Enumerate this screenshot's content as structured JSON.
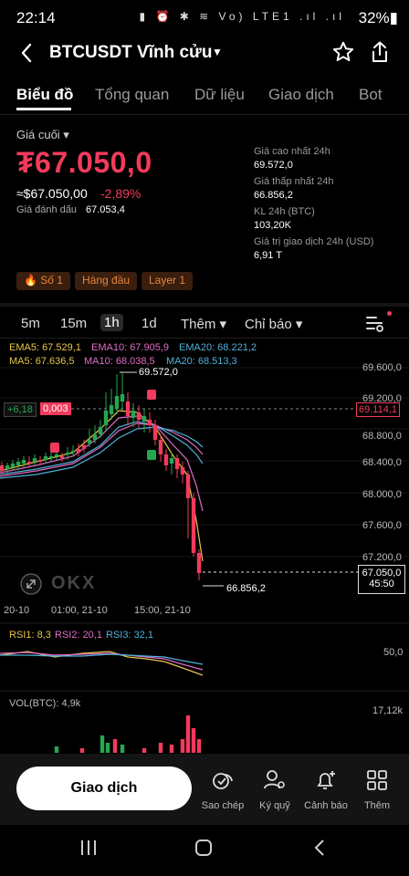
{
  "status": {
    "time": "22:14",
    "icons": "▮ ⏰ ✱ ≋ Vo) LTE1 .ıl .ıl",
    "battery": "32%▮"
  },
  "header": {
    "title": "BTCUSDT Vĩnh cửu"
  },
  "tabs": [
    "Biểu đồ",
    "Tổng quan",
    "Dữ liệu",
    "Giao dịch",
    "Bot"
  ],
  "price": {
    "label": "Giá cuối ▾",
    "last": "₮67.050,0",
    "usd": "≈$67.050,00",
    "change": "-2,89%",
    "mark_label": "Giá đánh dấu",
    "mark_value": "67.053,4"
  },
  "stats": [
    {
      "label": "Giá cao nhất 24h",
      "value": "69.572,0"
    },
    {
      "label": "Giá thấp nhất 24h",
      "value": "66.856,2"
    },
    {
      "label": "KL 24h (BTC)",
      "value": "103,20K"
    },
    {
      "label": "Giá trị giao dịch 24h (USD)",
      "value": "6,91 T"
    }
  ],
  "badges": [
    "🔥 Số 1",
    "Hàng đầu",
    "Layer 1"
  ],
  "intervals": [
    "5m",
    "15m",
    "1h",
    "1d",
    "Thêm ▾",
    "Chỉ báo ▾"
  ],
  "indicators": {
    "ema5": "EMA5: 67.529,1",
    "ema10": "EMA10: 67.905,9",
    "ema20": "EMA20: 68.221,2",
    "ma5": "MA5: 67.636,5",
    "ma10": "MA10: 68.038,5",
    "ma20": "MA20: 68.513,3"
  },
  "chart_data": {
    "type": "candlestick",
    "y_ticks": [
      "69.600,0",
      "69.200,0",
      "68.800,0",
      "68.400,0",
      "68.000,0",
      "67.600,0",
      "67.200,0"
    ],
    "x_ticks": [
      "20-10",
      "01:00, 21-10",
      "15:00, 21-10"
    ],
    "high_label": "69.572,0",
    "low_label": "66.856,2",
    "crosshair_price": "69.114,1",
    "crosshair_delta": "+6,18",
    "crosshair_value": "0,003",
    "last_price": "67.050,0",
    "countdown": "45:50",
    "watermark": "OKX",
    "rsi": {
      "rsi1": "RSI1: 8,3",
      "rsi2": "RSI2: 20,1",
      "rsi3": "RSI3: 32,1",
      "tick": "50,0"
    },
    "volume": {
      "label": "VOL(BTC): 4,9k",
      "tick": "17,12k"
    },
    "colors": {
      "up": "#25a750",
      "down": "#f23b5c"
    }
  },
  "actions": {
    "trade": "Giao dịch",
    "copy": "Sao chép",
    "margin": "Ký quỹ",
    "alert": "Cảnh báo",
    "more": "Thêm"
  }
}
